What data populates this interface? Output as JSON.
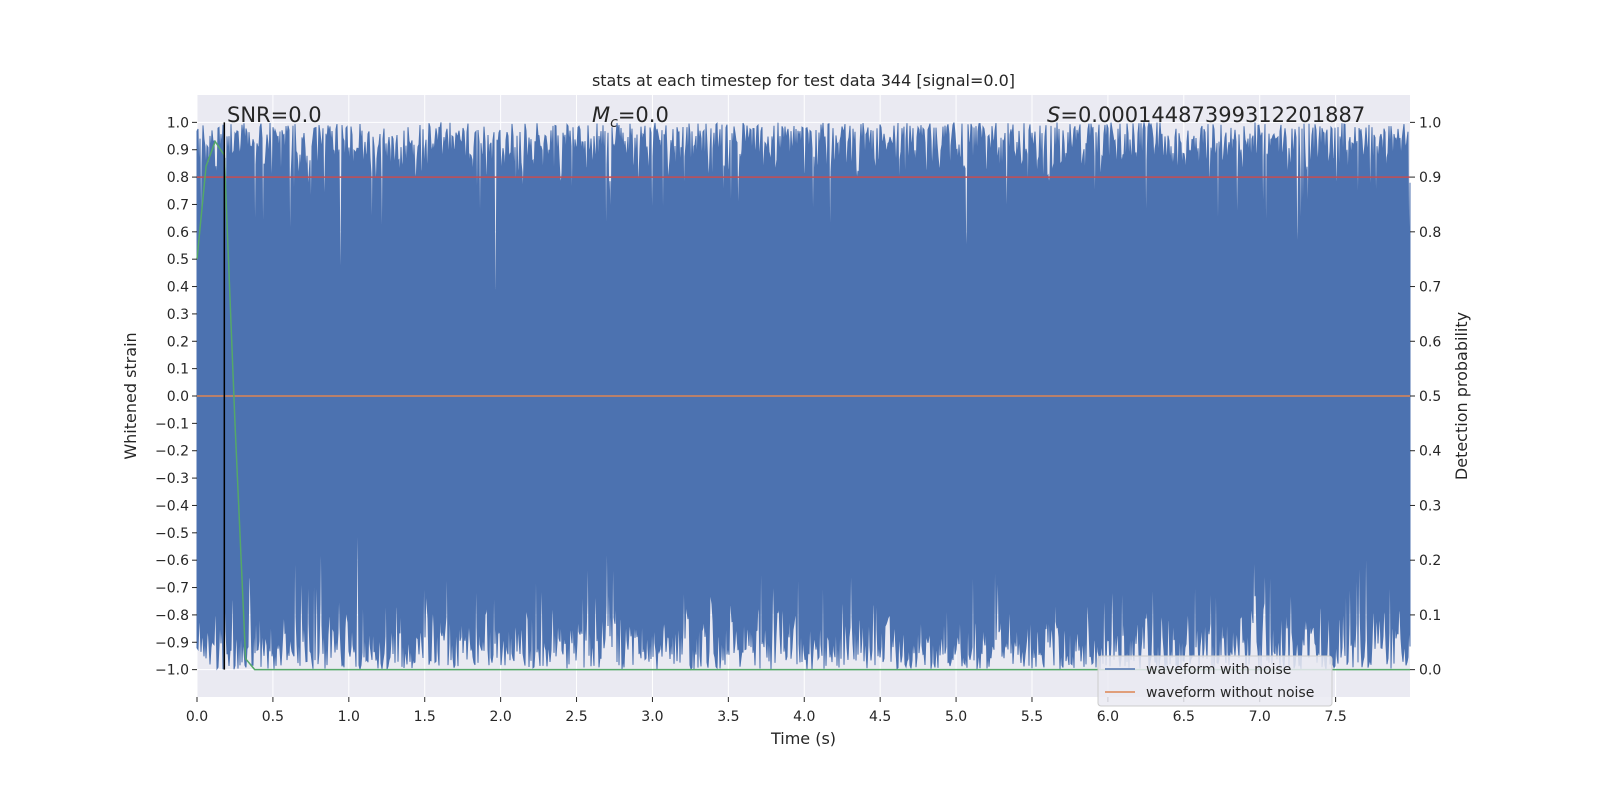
{
  "chart_data": {
    "type": "line",
    "title": "stats at each timestep for test data 344 [signal=0.0]",
    "xlabel": "Time (s)",
    "ylabel": "Whitened strain",
    "y2label": "Detection probability",
    "xlim": [
      0.0,
      7.99
    ],
    "ylim": [
      -1.1,
      1.1
    ],
    "y2lim": [
      -0.05,
      1.05
    ],
    "xticks": [
      "0.0",
      "0.5",
      "1.0",
      "1.5",
      "2.0",
      "2.5",
      "3.0",
      "3.5",
      "4.0",
      "4.5",
      "5.0",
      "5.5",
      "6.0",
      "6.5",
      "7.0",
      "7.5"
    ],
    "yticks": [
      "1.0",
      "0.9",
      "0.8",
      "0.7",
      "0.6",
      "0.5",
      "0.4",
      "0.3",
      "0.2",
      "0.1",
      "0.0",
      "−0.1",
      "−0.2",
      "−0.3",
      "−0.4",
      "−0.5",
      "−0.6",
      "−0.7",
      "−0.8",
      "−0.9",
      "−1.0"
    ],
    "y2ticks": [
      "1.0",
      "0.9",
      "0.8",
      "0.7",
      "0.6",
      "0.5",
      "0.4",
      "0.3",
      "0.2",
      "0.1",
      "0.0"
    ],
    "grid": true,
    "annotations": {
      "snr": "SNR=0.0",
      "mc_symbol": "M",
      "mc_sub": "c",
      "mc_value": "=0.0",
      "s_symbol": "S",
      "s_value": "=0.00014487399312201887"
    },
    "series": [
      {
        "name": "waveform with noise",
        "color": "#4c72b0",
        "kind": "noise",
        "y_range": [
          -1.0,
          1.0
        ]
      },
      {
        "name": "waveform without noise",
        "color": "#dd8452",
        "kind": "flat",
        "y": 0.0
      },
      {
        "color": "#55a868",
        "axis": "right",
        "x": [
          0.0,
          0.06,
          0.12,
          0.18,
          0.25,
          0.32,
          0.38,
          7.99
        ],
        "y": [
          0.75,
          0.92,
          0.965,
          0.94,
          0.45,
          0.02,
          0.0,
          0.0
        ]
      }
    ],
    "threshold": {
      "axis": "right",
      "y": 0.9,
      "color": "#c44e52"
    },
    "marker_line": {
      "x": 0.18,
      "y_range": [
        -1.0,
        1.0
      ],
      "color": "#000000"
    },
    "legend": {
      "placement": "lower-right",
      "items": [
        {
          "label": "waveform with noise",
          "color": "#4c72b0"
        },
        {
          "label": "waveform without noise",
          "color": "#dd8452"
        }
      ]
    },
    "colors": {
      "axes_bg": "#eaeaf2",
      "grid": "#ffffff",
      "text": "#262626"
    }
  }
}
